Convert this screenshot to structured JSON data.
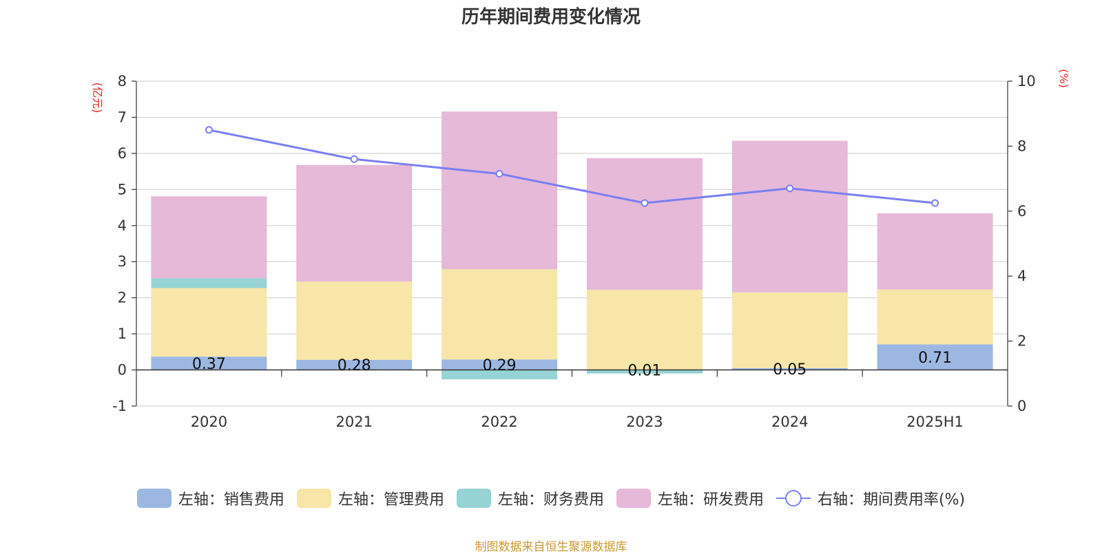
{
  "chart_data": {
    "type": "bar",
    "title": "历年期间费用变化情况",
    "categories": [
      "2020",
      "2021",
      "2022",
      "2023",
      "2024",
      "2025H1"
    ],
    "series": [
      {
        "name": "左轴：销售费用",
        "axis": "left",
        "kind": "bar",
        "color": "#9cb8e2",
        "values": [
          0.37,
          0.28,
          0.29,
          0.01,
          0.05,
          0.71
        ]
      },
      {
        "name": "左轴：管理费用",
        "axis": "left",
        "kind": "bar",
        "color": "#f7e6a8",
        "values": [
          1.9,
          2.17,
          2.5,
          2.21,
          2.1,
          1.52
        ]
      },
      {
        "name": "左轴：财务费用",
        "axis": "left",
        "kind": "bar",
        "color": "#96d3d5",
        "values": [
          0.27,
          0.0,
          -0.26,
          -0.1,
          0.0,
          0.0
        ]
      },
      {
        "name": "左轴：研发费用",
        "axis": "left",
        "kind": "bar",
        "color": "#e6b9d9",
        "values": [
          2.27,
          3.23,
          4.37,
          3.65,
          4.2,
          2.11
        ]
      },
      {
        "name": "右轴：期间费用率(%)",
        "axis": "right",
        "kind": "line",
        "color": "#7b7ff0",
        "values": [
          8.5,
          7.6,
          7.15,
          6.25,
          6.7,
          6.25
        ]
      }
    ],
    "data_labels": [
      "0.37",
      "0.28",
      "0.29",
      "0.01",
      "0.05",
      "0.71"
    ],
    "left_axis": {
      "unit": "(亿元)",
      "min": -1,
      "max": 8,
      "ticks": [
        -1,
        0,
        1,
        2,
        3,
        4,
        5,
        6,
        7,
        8
      ]
    },
    "right_axis": {
      "unit": "(%)",
      "min": 0,
      "max": 10,
      "ticks": [
        0,
        2,
        4,
        6,
        8,
        10
      ]
    },
    "grid": true,
    "legend_position": "bottom"
  },
  "source_note": "制图数据来自恒生聚源数据库"
}
